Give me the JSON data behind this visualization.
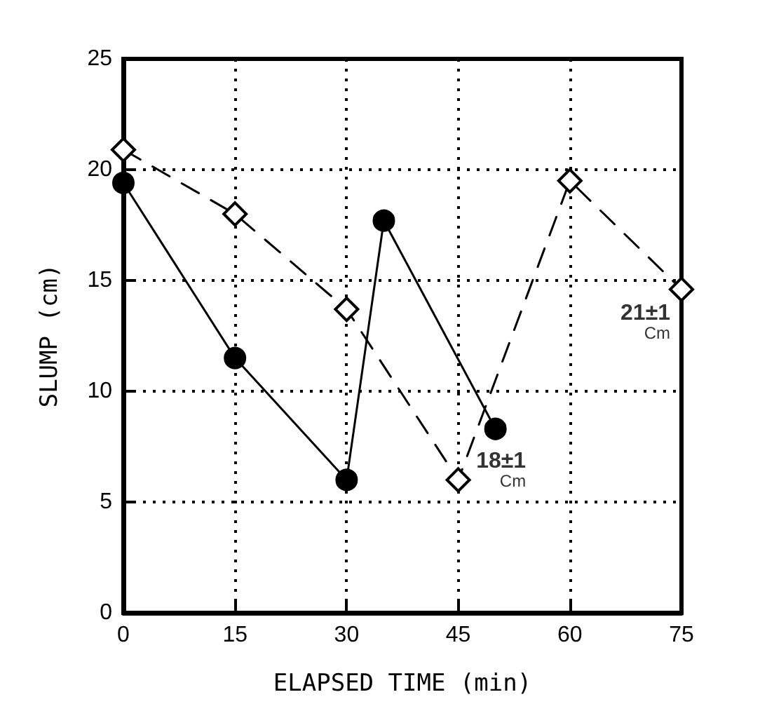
{
  "chart_data": {
    "type": "line",
    "xlabel": "ELAPSED TIME (min)",
    "ylabel": "SLUMP (cm)",
    "series": [
      {
        "color": "#000000",
        "x": [
          0,
          15,
          30,
          35,
          50
        ],
        "values": [
          19.4,
          11.5,
          6.0,
          17.7,
          8.3
        ],
        "marker": "circle",
        "line_style": "solid"
      },
      {
        "color": "#000000",
        "x": [
          0,
          15,
          30,
          45,
          60,
          75
        ],
        "values": [
          20.9,
          18.0,
          13.7,
          6.0,
          19.5,
          14.6
        ],
        "marker": "diamond",
        "line_style": "dashed"
      }
    ],
    "xlim": [
      0,
      75
    ],
    "xticks": [
      0,
      15,
      30,
      45,
      60,
      75
    ],
    "ylim": [
      0,
      25
    ],
    "yticks": [
      0,
      5,
      10,
      15,
      20,
      25
    ],
    "grid": true,
    "annotations": [
      {
        "text": "18±1\nCm",
        "x": 50,
        "y": 8.3
      },
      {
        "text": "21±1\nCm",
        "x": 75,
        "y": 14.6
      }
    ]
  }
}
